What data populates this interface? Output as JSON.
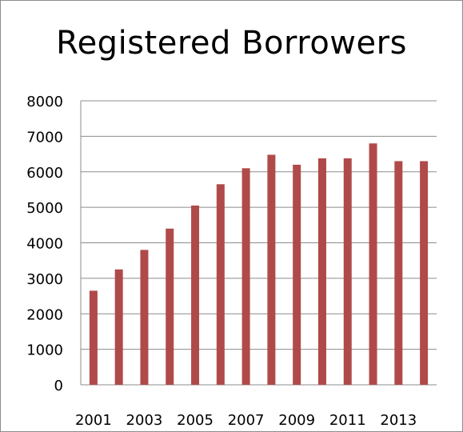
{
  "chart_data": {
    "type": "bar",
    "title": "Registered Borrowers",
    "xlabel": "",
    "ylabel": "",
    "categories": [
      "2001",
      "2002",
      "2003",
      "2004",
      "2005",
      "2006",
      "2007",
      "2008",
      "2009",
      "2010",
      "2011",
      "2012",
      "2013",
      "2014"
    ],
    "x_tick_labels": [
      "2001",
      "2003",
      "2005",
      "2007",
      "2009",
      "2011",
      "2013"
    ],
    "y_tick_labels": [
      "0",
      "1000",
      "2000",
      "3000",
      "4000",
      "5000",
      "6000",
      "7000",
      "8000"
    ],
    "series": [
      {
        "values": [
          2650,
          3250,
          3800,
          4400,
          5050,
          5650,
          6100,
          6480,
          6200,
          6380,
          6380,
          6800,
          6300,
          6300
        ]
      }
    ],
    "ylim": [
      0,
      8000
    ],
    "grid": true,
    "legend": "none",
    "colors": {
      "bar": "#B04A4A",
      "grid": "#8c8c8c",
      "axis": "#8c8c8c"
    }
  }
}
